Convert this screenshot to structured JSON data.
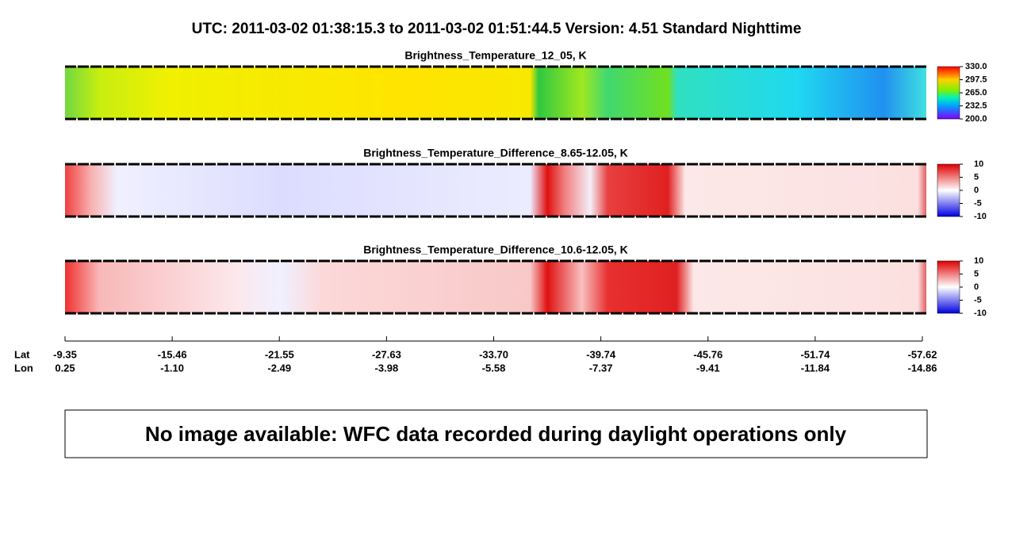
{
  "header": {
    "title": "UTC:  2011-03-02   01:38:15.3  to  2011-03-02   01:51:44.5    Version: 4.51  Standard Nighttime"
  },
  "panels": [
    {
      "title": "Brightness_Temperature_12_05, K",
      "clim": [
        200,
        330
      ],
      "ticks": [
        {
          "value": 330,
          "label": "330.0"
        },
        {
          "value": 297.5,
          "label": "297.5"
        },
        {
          "value": 265,
          "label": "265.0"
        },
        {
          "value": 232.5,
          "label": "232.5"
        },
        {
          "value": 200,
          "label": "200.0"
        }
      ]
    },
    {
      "title": "Brightness_Temperature_Difference_8.65-12.05, K",
      "clim": [
        -10,
        10
      ],
      "ticks": [
        10,
        5,
        0,
        -5,
        -10
      ]
    },
    {
      "title": "Brightness_Temperature_Difference_10.6-12.05, K",
      "clim": [
        -10,
        10
      ],
      "ticks": [
        10,
        5,
        0,
        -5,
        -10
      ]
    }
  ],
  "axis": {
    "lat_label": "Lat",
    "lon_label": "Lon",
    "lat": [
      "-9.35",
      "-15.46",
      "-21.55",
      "-27.63",
      "-33.70",
      "-39.74",
      "-45.76",
      "-51.74",
      "-57.62"
    ],
    "lon": [
      "0.25",
      "-1.10",
      "-2.49",
      "-3.98",
      "-5.58",
      "-7.37",
      "-9.41",
      "-11.84",
      "-14.86"
    ]
  },
  "notice": "No image available: WFC data recorded during daylight operations only"
}
